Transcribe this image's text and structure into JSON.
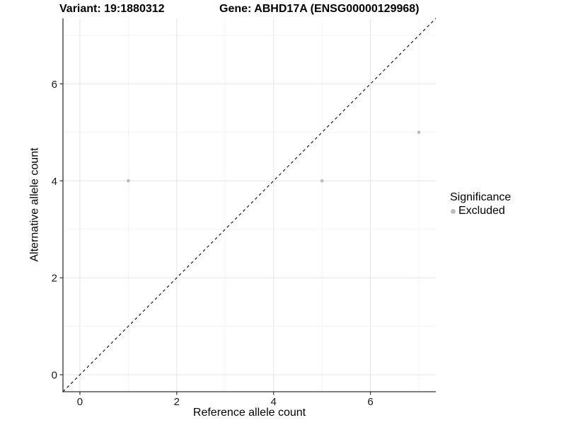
{
  "figure": {
    "title_variant": "Variant: 19:1880312",
    "title_gene": "Gene: ABHD17A (ENSG00000129968)"
  },
  "chart_data": {
    "type": "scatter",
    "title": "Variant: 19:1880312   Gene: ABHD17A (ENSG00000129968)",
    "xlabel": "Reference allele count",
    "ylabel": "Alternative allele count",
    "xlim": [
      -0.35,
      7.35
    ],
    "ylim": [
      -0.35,
      7.35
    ],
    "x_ticks": [
      0,
      2,
      4,
      6
    ],
    "y_ticks": [
      0,
      2,
      4,
      6
    ],
    "x_minor_ticks": [
      1,
      3,
      5,
      7
    ],
    "y_minor_ticks": [
      1,
      3,
      5,
      7
    ],
    "grid": true,
    "reference_line": {
      "equation": "y = x",
      "style": "dashed",
      "color": "#000000"
    },
    "series": [
      {
        "name": "Excluded",
        "color": "#bdbdbd",
        "points": [
          {
            "x": 1,
            "y": 4
          },
          {
            "x": 5,
            "y": 4
          },
          {
            "x": 7,
            "y": 5
          }
        ]
      }
    ],
    "legend": {
      "title": "Significance",
      "position": "right",
      "items": [
        {
          "label": "Excluded",
          "color": "#bdbdbd"
        }
      ]
    }
  },
  "colors": {
    "background": "#ffffff",
    "grid_major": "#e4e4e4",
    "grid_minor": "#f1f1f1",
    "axis_line": "#333333",
    "tick_label": "#1a1a1a",
    "point": "#bdbdbd",
    "reference_line": "#000000"
  }
}
